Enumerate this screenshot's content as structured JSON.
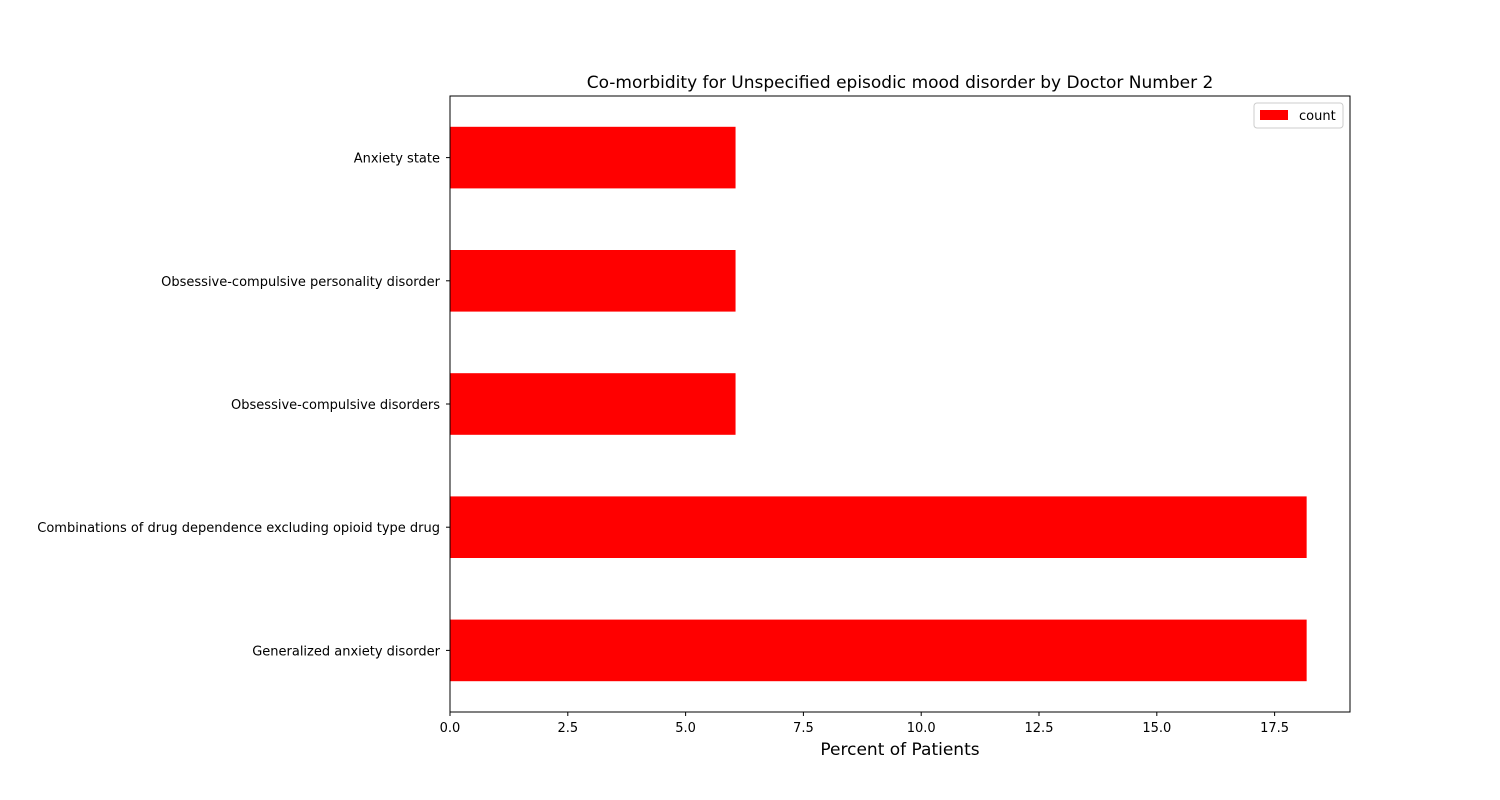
{
  "chart_data": {
    "type": "bar",
    "orientation": "horizontal",
    "title": "Co-morbidity for Unspecified episodic mood disorder by Doctor Number 2",
    "xlabel": "Percent of Patients",
    "ylabel": "",
    "categories": [
      "Generalized anxiety disorder",
      "Combinations of drug dependence excluding opioid type drug",
      "Obsessive-compulsive disorders",
      "Obsessive-compulsive personality disorder",
      "Anxiety state"
    ],
    "series": [
      {
        "name": "count",
        "color": "#ff0000",
        "values": [
          18.18,
          18.18,
          6.06,
          6.06,
          6.06
        ]
      }
    ],
    "xlim": [
      0,
      19.1
    ],
    "xticks": [
      0.0,
      2.5,
      5.0,
      7.5,
      10.0,
      12.5,
      15.0,
      17.5
    ],
    "xtick_labels": [
      "0.0",
      "2.5",
      "5.0",
      "7.5",
      "10.0",
      "12.5",
      "15.0",
      "17.5"
    ],
    "grid": false,
    "legend_position": "top-right"
  }
}
